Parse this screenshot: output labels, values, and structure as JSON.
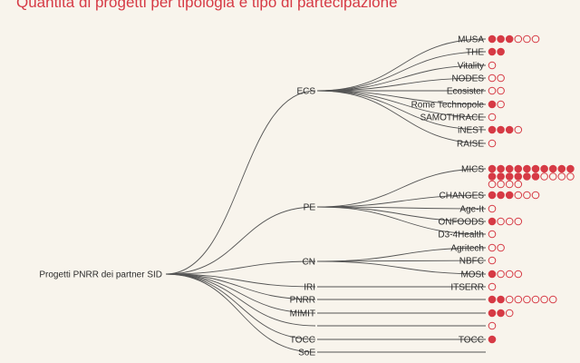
{
  "title": "Quantità di progetti per tipologia e tipo di partecipazione",
  "root": "Progetti PNRR dei partner SID",
  "colors": {
    "accent": "#d63a45",
    "link": "#555555",
    "background": "#f8f4ec"
  },
  "groups": [
    {
      "label": "ECS",
      "children": [
        {
          "label": "MUSA",
          "filled": 3,
          "empty": 3
        },
        {
          "label": "THE",
          "filled": 2,
          "empty": 0
        },
        {
          "label": "Vitality",
          "filled": 0,
          "empty": 1
        },
        {
          "label": "NODES",
          "filled": 0,
          "empty": 2
        },
        {
          "label": "Ecosister",
          "filled": 0,
          "empty": 2
        },
        {
          "label": "Rome Technopole",
          "filled": 1,
          "empty": 1
        },
        {
          "label": "SAMOTHRACE",
          "filled": 0,
          "empty": 1
        },
        {
          "label": "iNEST",
          "filled": 3,
          "empty": 1
        },
        {
          "label": "RAISE",
          "filled": 0,
          "empty": 1
        }
      ]
    },
    {
      "label": "PE",
      "children": [
        {
          "label": "MICS",
          "filled": 16,
          "empty": 8
        },
        {
          "label": "CHANGES",
          "filled": 3,
          "empty": 3
        },
        {
          "label": "Age-It",
          "filled": 0,
          "empty": 1
        },
        {
          "label": "ONFOODS",
          "filled": 1,
          "empty": 3
        },
        {
          "label": "D3-4Health",
          "filled": 0,
          "empty": 1
        }
      ]
    },
    {
      "label": "CN",
      "children": [
        {
          "label": "Agritech",
          "filled": 0,
          "empty": 2
        },
        {
          "label": "NBFC",
          "filled": 0,
          "empty": 1
        },
        {
          "label": "MOSt",
          "filled": 1,
          "empty": 3
        }
      ]
    },
    {
      "label": "IRI",
      "children": [
        {
          "label": "ITSERR",
          "filled": 0,
          "empty": 1
        }
      ]
    },
    {
      "label": "PNRR",
      "filled": 2,
      "empty": 6,
      "children": []
    },
    {
      "label": "MIMIT",
      "filled": 2,
      "empty": 1,
      "children": []
    },
    {
      "label": "",
      "filled": 0,
      "empty": 1,
      "children": []
    },
    {
      "label": "TOCC",
      "children": [
        {
          "label": "TOCC",
          "filled": 1,
          "empty": 0
        }
      ]
    },
    {
      "label": "SoE",
      "filled": 0,
      "empty": 0,
      "children": []
    }
  ]
}
